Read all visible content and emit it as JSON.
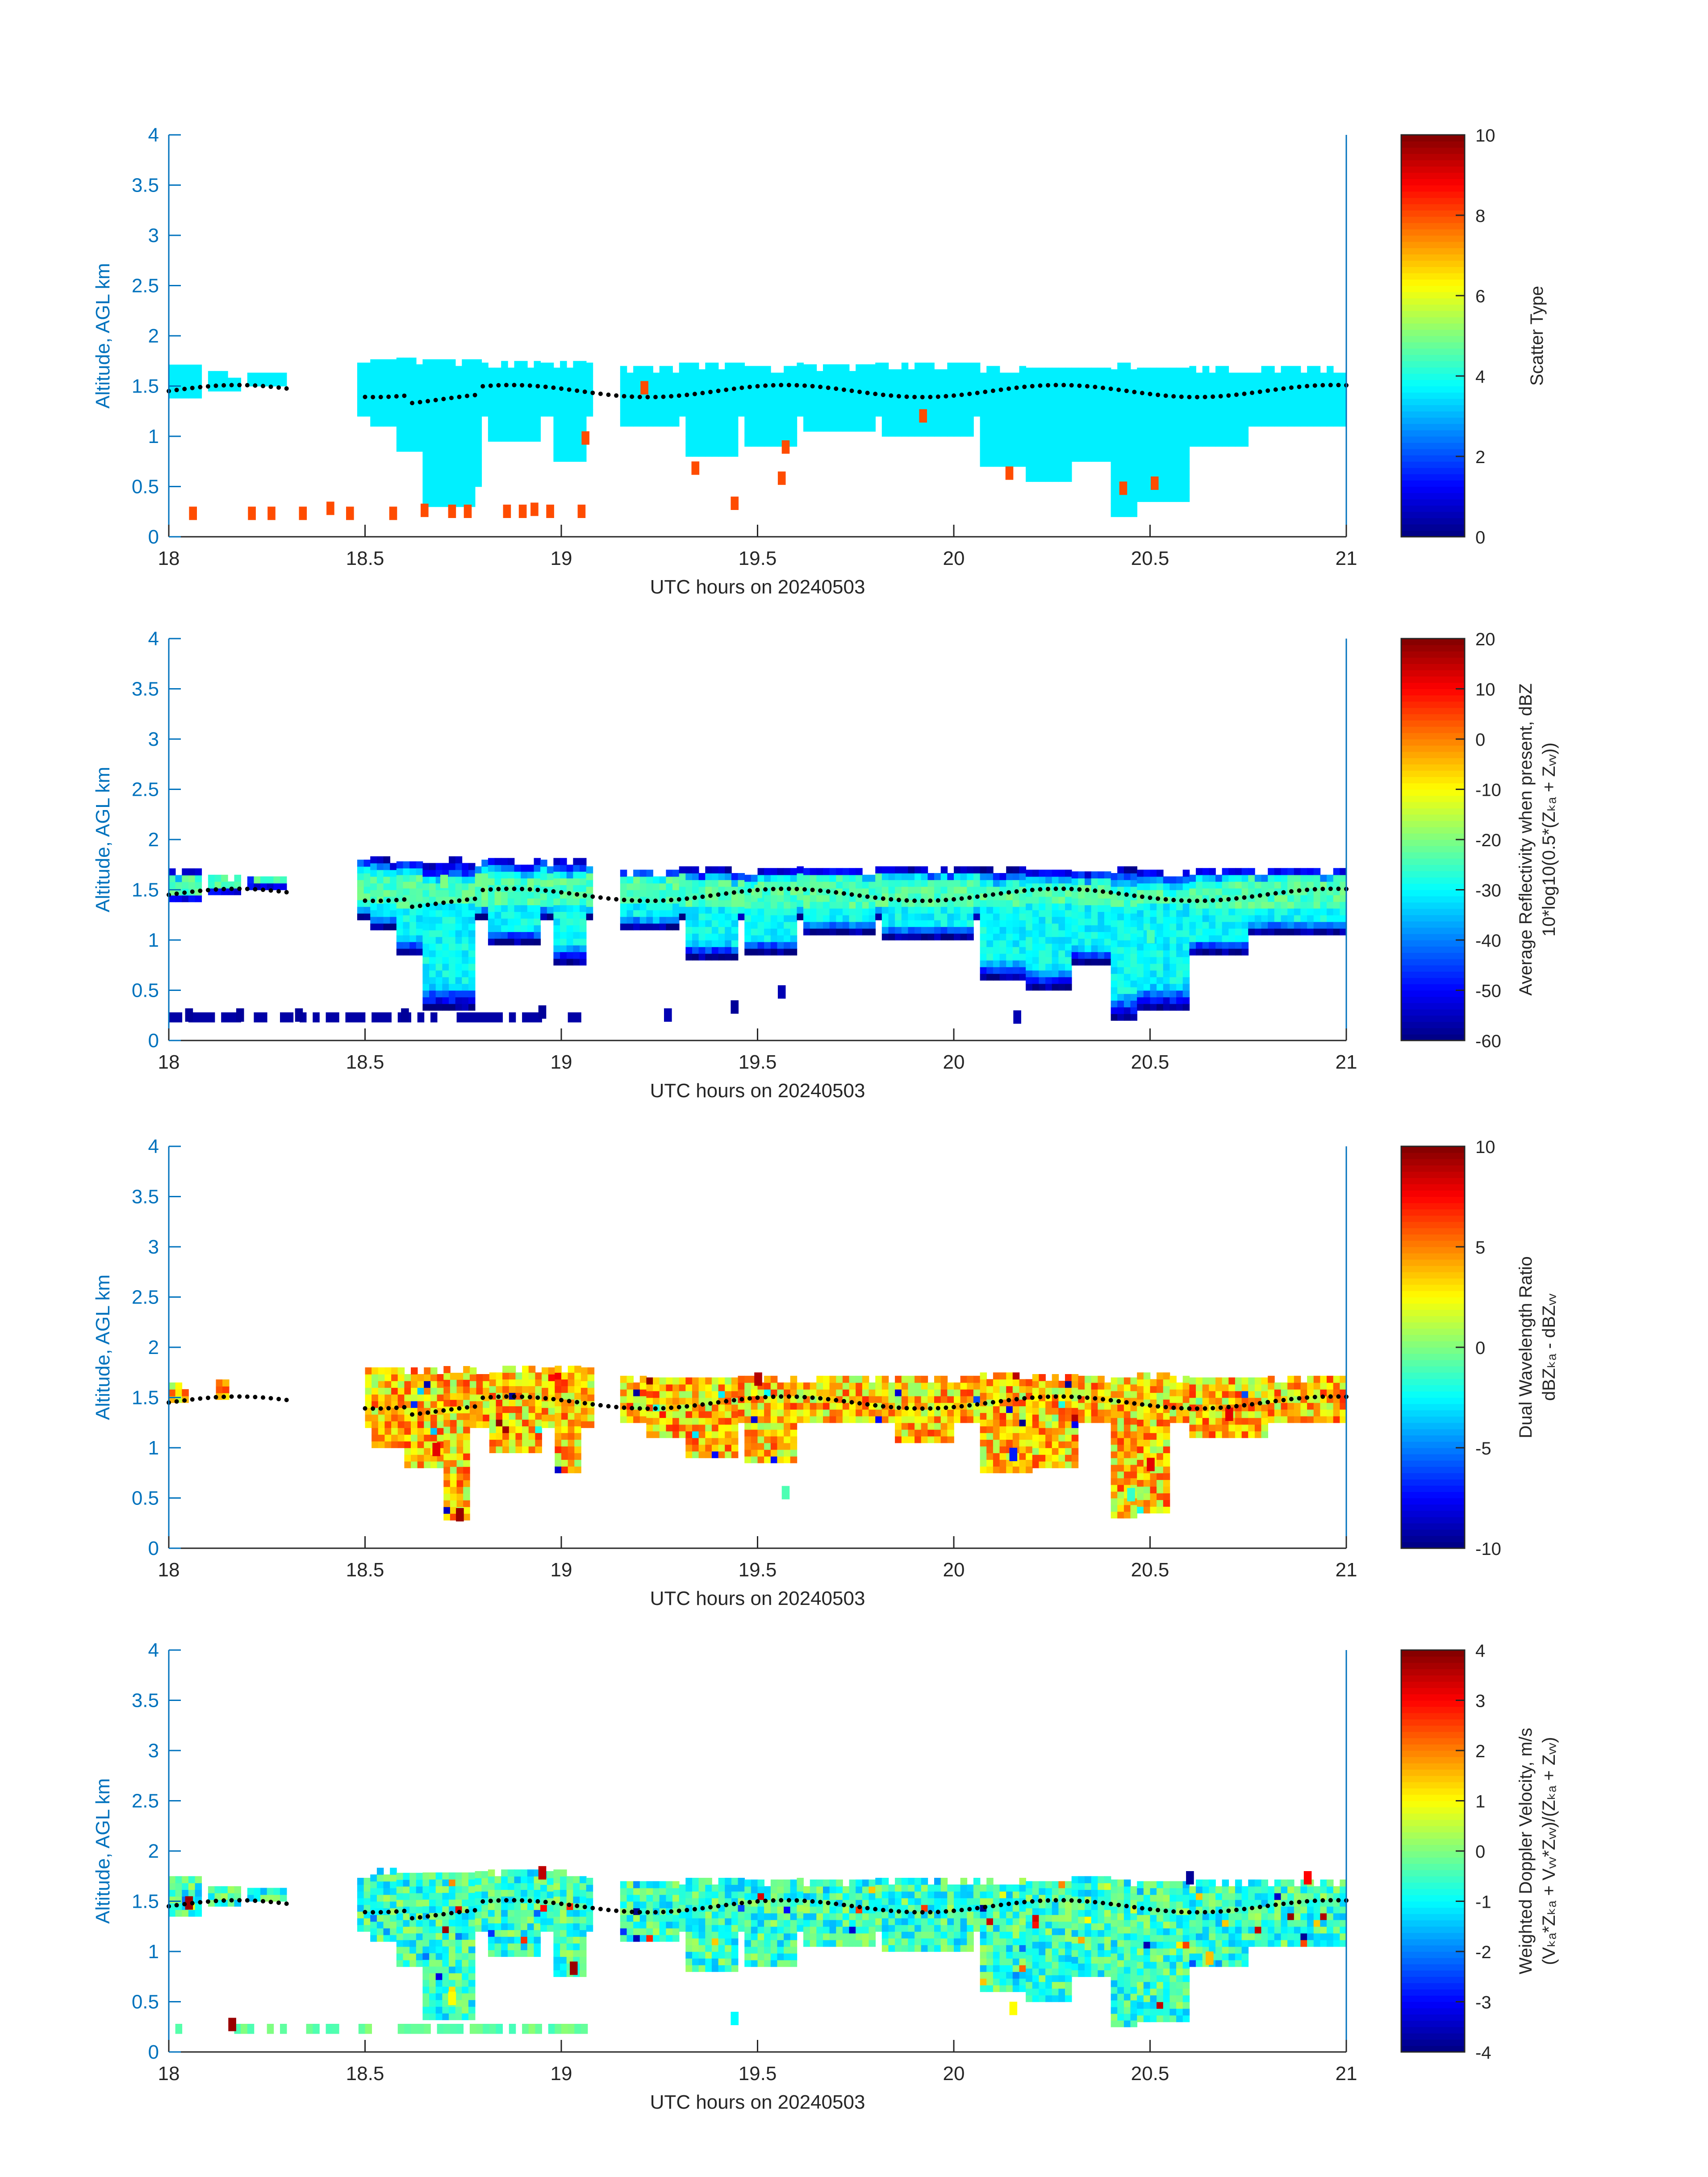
{
  "figure": {
    "background": "#ffffff",
    "axis_color": "#0072BD",
    "tick_label_color": "#262626"
  },
  "chart_data": [
    {
      "type": "heatmap",
      "xlabel": "UTC hours on 20240503",
      "ylabel": "Altitude, AGL km",
      "xlim": [
        18,
        21
      ],
      "ylim": [
        0,
        4
      ],
      "xticks": [
        "18",
        "18.5",
        "19",
        "19.5",
        "20",
        "20.5",
        "21"
      ],
      "yticks": [
        "0",
        "0.5",
        "1",
        "1.5",
        "2",
        "2.5",
        "3",
        "3.5",
        "4"
      ],
      "colorbar": {
        "label": [
          "Scatter Type"
        ],
        "range": [
          0,
          10
        ],
        "ticks": [
          "0",
          "2",
          "4",
          "6",
          "8",
          "10"
        ],
        "colormap": "jet"
      },
      "main_value": 3.6,
      "masses": [
        {
          "x0": 18.0,
          "x1": 18.08,
          "top": 1.65,
          "base": 1.38
        },
        {
          "x0": 18.1,
          "x1": 18.18,
          "top": 1.63,
          "base": 1.45
        },
        {
          "x0": 18.2,
          "x1": 18.3,
          "top": 1.62,
          "base": 1.5
        },
        {
          "x0": 18.48,
          "x1": 19.08,
          "top": 1.72,
          "base": 1.2
        },
        {
          "x0": 19.15,
          "x1": 21.0,
          "top": 1.68,
          "base": 1.2
        }
      ],
      "drapes": [
        {
          "x0": 18.52,
          "x1": 18.62,
          "bottom": 1.1
        },
        {
          "x0": 18.58,
          "x1": 18.7,
          "bottom": 0.85
        },
        {
          "x0": 18.65,
          "x1": 18.78,
          "bottom": 0.3
        },
        {
          "x0": 18.72,
          "x1": 18.8,
          "bottom": 0.5
        },
        {
          "x0": 18.82,
          "x1": 18.95,
          "bottom": 0.95
        },
        {
          "x0": 18.98,
          "x1": 19.06,
          "bottom": 0.75
        },
        {
          "x0": 19.15,
          "x1": 19.3,
          "bottom": 1.1
        },
        {
          "x0": 19.32,
          "x1": 19.45,
          "bottom": 0.8
        },
        {
          "x0": 19.47,
          "x1": 19.6,
          "bottom": 0.9
        },
        {
          "x0": 19.62,
          "x1": 19.8,
          "bottom": 1.05
        },
        {
          "x0": 19.82,
          "x1": 20.05,
          "bottom": 1.0
        },
        {
          "x0": 20.07,
          "x1": 20.18,
          "bottom": 0.7
        },
        {
          "x0": 20.18,
          "x1": 20.3,
          "bottom": 0.55
        },
        {
          "x0": 20.3,
          "x1": 20.4,
          "bottom": 0.75
        },
        {
          "x0": 20.4,
          "x1": 20.47,
          "bottom": 0.2
        },
        {
          "x0": 20.47,
          "x1": 20.6,
          "bottom": 0.35
        },
        {
          "x0": 20.6,
          "x1": 20.75,
          "bottom": 0.9
        },
        {
          "x0": 20.75,
          "x1": 21.0,
          "bottom": 1.1
        }
      ],
      "ground_layer": {
        "x0": 18.0,
        "x1": 19.07,
        "y0": 0.18,
        "y1": 0.28
      },
      "spots": [
        {
          "x": 18.06,
          "y": 0.2,
          "v": 8
        },
        {
          "x": 18.21,
          "y": 0.2,
          "v": 8
        },
        {
          "x": 18.26,
          "y": 0.2,
          "v": 8
        },
        {
          "x": 18.34,
          "y": 0.2,
          "v": 8
        },
        {
          "x": 18.41,
          "y": 0.25,
          "v": 8
        },
        {
          "x": 18.46,
          "y": 0.2,
          "v": 8
        },
        {
          "x": 18.57,
          "y": 0.2,
          "v": 8
        },
        {
          "x": 18.65,
          "y": 0.23,
          "v": 8
        },
        {
          "x": 18.72,
          "y": 0.22,
          "v": 8
        },
        {
          "x": 18.76,
          "y": 0.22,
          "v": 8
        },
        {
          "x": 18.86,
          "y": 0.22,
          "v": 8
        },
        {
          "x": 18.9,
          "y": 0.22,
          "v": 8
        },
        {
          "x": 18.93,
          "y": 0.24,
          "v": 8
        },
        {
          "x": 18.97,
          "y": 0.22,
          "v": 8
        },
        {
          "x": 19.05,
          "y": 0.22,
          "v": 8
        },
        {
          "x": 19.06,
          "y": 0.95,
          "v": 8
        },
        {
          "x": 19.21,
          "y": 1.45,
          "v": 8
        },
        {
          "x": 19.34,
          "y": 0.65,
          "v": 8
        },
        {
          "x": 19.44,
          "y": 0.3,
          "v": 8
        },
        {
          "x": 19.56,
          "y": 0.55,
          "v": 8
        },
        {
          "x": 19.57,
          "y": 0.86,
          "v": 8
        },
        {
          "x": 19.92,
          "y": 1.17,
          "v": 8
        },
        {
          "x": 20.14,
          "y": 0.6,
          "v": 8
        },
        {
          "x": 20.43,
          "y": 0.45,
          "v": 8
        },
        {
          "x": 20.51,
          "y": 0.5,
          "v": 8
        }
      ]
    },
    {
      "type": "heatmap",
      "xlabel": "UTC hours on 20240503",
      "ylabel": "Altitude, AGL km",
      "xlim": [
        18,
        21
      ],
      "ylim": [
        0,
        4
      ],
      "xticks": [
        "18",
        "18.5",
        "19",
        "19.5",
        "20",
        "20.5",
        "21"
      ],
      "yticks": [
        "0",
        "0.5",
        "1",
        "1.5",
        "2",
        "2.5",
        "3",
        "3.5",
        "4"
      ],
      "colorbar": {
        "label": [
          "Average Reflectivity when present, dBZ",
          "10*log10(0.5*(Zₖₐ + Zᵥᵥ))"
        ],
        "range": [
          -60,
          20
        ],
        "ticks": [
          "-60",
          "-50",
          "-40",
          "-30",
          "-20",
          "-10",
          "0",
          "10",
          "20"
        ],
        "colormap": "jet"
      },
      "main_value": -32,
      "masses": [
        {
          "x0": 18.0,
          "x1": 18.08,
          "top": 1.65,
          "base": 1.38
        },
        {
          "x0": 18.1,
          "x1": 18.18,
          "top": 1.63,
          "base": 1.45
        },
        {
          "x0": 18.2,
          "x1": 18.3,
          "top": 1.62,
          "base": 1.5
        },
        {
          "x0": 18.48,
          "x1": 19.08,
          "top": 1.78,
          "base": 1.2
        },
        {
          "x0": 19.15,
          "x1": 21.0,
          "top": 1.68,
          "base": 1.2
        }
      ],
      "drapes": [
        {
          "x0": 18.52,
          "x1": 18.62,
          "bottom": 1.1
        },
        {
          "x0": 18.58,
          "x1": 18.7,
          "bottom": 0.85
        },
        {
          "x0": 18.65,
          "x1": 18.78,
          "bottom": 0.3
        },
        {
          "x0": 18.82,
          "x1": 18.95,
          "bottom": 0.95
        },
        {
          "x0": 18.98,
          "x1": 19.06,
          "bottom": 0.75
        },
        {
          "x0": 19.15,
          "x1": 19.3,
          "bottom": 1.1
        },
        {
          "x0": 19.32,
          "x1": 19.45,
          "bottom": 0.8
        },
        {
          "x0": 19.47,
          "x1": 19.6,
          "bottom": 0.85
        },
        {
          "x0": 19.62,
          "x1": 19.8,
          "bottom": 1.05
        },
        {
          "x0": 19.82,
          "x1": 20.05,
          "bottom": 1.0
        },
        {
          "x0": 20.07,
          "x1": 20.18,
          "bottom": 0.6
        },
        {
          "x0": 20.18,
          "x1": 20.3,
          "bottom": 0.5
        },
        {
          "x0": 20.3,
          "x1": 20.4,
          "bottom": 0.75
        },
        {
          "x0": 20.4,
          "x1": 20.47,
          "bottom": 0.2
        },
        {
          "x0": 20.47,
          "x1": 20.6,
          "bottom": 0.3
        },
        {
          "x0": 20.6,
          "x1": 20.75,
          "bottom": 0.85
        },
        {
          "x0": 20.75,
          "x1": 21.0,
          "bottom": 1.05
        }
      ],
      "ground_layer": {
        "x0": 18.0,
        "x1": 19.07,
        "y0": 0.18,
        "y1": 0.28
      },
      "spots": [
        {
          "x": 18.05,
          "y": 0.22,
          "v": -58
        },
        {
          "x": 18.18,
          "y": 0.22,
          "v": -58
        },
        {
          "x": 18.33,
          "y": 0.22,
          "v": -58
        },
        {
          "x": 18.6,
          "y": 0.22,
          "v": -58
        },
        {
          "x": 18.95,
          "y": 0.25,
          "v": -58
        },
        {
          "x": 19.27,
          "y": 0.22,
          "v": -56
        },
        {
          "x": 19.44,
          "y": 0.3,
          "v": -58
        },
        {
          "x": 19.56,
          "y": 0.45,
          "v": -56
        },
        {
          "x": 20.16,
          "y": 0.2,
          "v": -56
        },
        {
          "x": 18.7,
          "y": 1.55,
          "v": -20
        },
        {
          "x": 19.5,
          "y": 1.45,
          "v": -22
        },
        {
          "x": 20.5,
          "y": 1.0,
          "v": -24
        }
      ]
    },
    {
      "type": "heatmap",
      "xlabel": "UTC hours on 20240503",
      "ylabel": "Altitude, AGL km",
      "xlim": [
        18,
        21
      ],
      "ylim": [
        0,
        4
      ],
      "xticks": [
        "18",
        "18.5",
        "19",
        "19.5",
        "20",
        "20.5",
        "21"
      ],
      "yticks": [
        "0",
        "0.5",
        "1",
        "1.5",
        "2",
        "2.5",
        "3",
        "3.5",
        "4"
      ],
      "colorbar": {
        "label": [
          "Dual Wavelength Ratio",
          "dBZₖₐ - dBZᵥᵥ"
        ],
        "range": [
          -10,
          10
        ],
        "ticks": [
          "-10",
          "-5",
          "0",
          "5",
          "10"
        ],
        "colormap": "jet"
      },
      "main_value": 3.5,
      "masses": [
        {
          "x0": 18.0,
          "x1": 18.05,
          "top": 1.6,
          "base": 1.45
        },
        {
          "x0": 18.12,
          "x1": 18.15,
          "top": 1.65,
          "base": 1.48
        },
        {
          "x0": 18.5,
          "x1": 19.08,
          "top": 1.78,
          "base": 1.2
        },
        {
          "x0": 19.15,
          "x1": 21.0,
          "top": 1.7,
          "base": 1.25
        }
      ],
      "drapes": [
        {
          "x0": 18.52,
          "x1": 18.62,
          "bottom": 1.0
        },
        {
          "x0": 18.6,
          "x1": 18.7,
          "bottom": 0.8
        },
        {
          "x0": 18.7,
          "x1": 18.76,
          "bottom": 0.28
        },
        {
          "x0": 18.82,
          "x1": 18.95,
          "bottom": 0.95
        },
        {
          "x0": 18.98,
          "x1": 19.05,
          "bottom": 0.75
        },
        {
          "x0": 19.22,
          "x1": 19.32,
          "bottom": 1.1
        },
        {
          "x0": 19.32,
          "x1": 19.45,
          "bottom": 0.9
        },
        {
          "x0": 19.47,
          "x1": 19.6,
          "bottom": 0.85
        },
        {
          "x0": 19.85,
          "x1": 20.0,
          "bottom": 1.05
        },
        {
          "x0": 20.07,
          "x1": 20.2,
          "bottom": 0.75
        },
        {
          "x0": 20.2,
          "x1": 20.32,
          "bottom": 0.8
        },
        {
          "x0": 20.4,
          "x1": 20.47,
          "bottom": 0.3
        },
        {
          "x0": 20.47,
          "x1": 20.55,
          "bottom": 0.35
        },
        {
          "x0": 20.6,
          "x1": 20.8,
          "bottom": 1.1
        }
      ],
      "spots": [
        {
          "x": 18.74,
          "y": 0.3,
          "v": 9.5
        },
        {
          "x": 19.57,
          "y": 0.52,
          "v": -1
        },
        {
          "x": 18.68,
          "y": 0.95,
          "v": 8
        },
        {
          "x": 20.5,
          "y": 0.8,
          "v": 8
        },
        {
          "x": 20.45,
          "y": 0.5,
          "v": -1.5
        },
        {
          "x": 20.7,
          "y": 1.3,
          "v": 8
        },
        {
          "x": 19.5,
          "y": 1.65,
          "v": 9
        },
        {
          "x": 20.15,
          "y": 0.9,
          "v": -7
        }
      ]
    },
    {
      "type": "heatmap",
      "xlabel": "UTC hours on 20240503",
      "ylabel": "Altitude, AGL km",
      "xlim": [
        18,
        21
      ],
      "ylim": [
        0,
        4
      ],
      "xticks": [
        "18",
        "18.5",
        "19",
        "19.5",
        "20",
        "20.5",
        "21"
      ],
      "yticks": [
        "0",
        "0.5",
        "1",
        "1.5",
        "2",
        "2.5",
        "3",
        "3.5",
        "4"
      ],
      "colorbar": {
        "label": [
          "Weighted Doppler Velocity, m/s",
          "(Vₖₐ*Zₖₐ + Vᵥᵥ*Zᵥᵥ)/(Zₖₐ + Zᵥᵥ)"
        ],
        "range": [
          -4,
          4
        ],
        "ticks": [
          "-4",
          "-3",
          "-2",
          "-1",
          "0",
          "1",
          "2",
          "3",
          "4"
        ],
        "colormap": "jet"
      },
      "main_value": -0.6,
      "masses": [
        {
          "x0": 18.0,
          "x1": 18.08,
          "top": 1.7,
          "base": 1.35
        },
        {
          "x0": 18.1,
          "x1": 18.18,
          "top": 1.65,
          "base": 1.45
        },
        {
          "x0": 18.2,
          "x1": 18.3,
          "top": 1.62,
          "base": 1.5
        },
        {
          "x0": 18.48,
          "x1": 19.08,
          "top": 1.78,
          "base": 1.2
        },
        {
          "x0": 19.15,
          "x1": 21.0,
          "top": 1.7,
          "base": 1.2
        }
      ],
      "drapes": [
        {
          "x0": 18.52,
          "x1": 18.62,
          "bottom": 1.1
        },
        {
          "x0": 18.58,
          "x1": 18.7,
          "bottom": 0.85
        },
        {
          "x0": 18.65,
          "x1": 18.78,
          "bottom": 0.32
        },
        {
          "x0": 18.82,
          "x1": 18.95,
          "bottom": 0.95
        },
        {
          "x0": 18.98,
          "x1": 19.06,
          "bottom": 0.75
        },
        {
          "x0": 19.15,
          "x1": 19.3,
          "bottom": 1.1
        },
        {
          "x0": 19.32,
          "x1": 19.45,
          "bottom": 0.8
        },
        {
          "x0": 19.47,
          "x1": 19.6,
          "bottom": 0.85
        },
        {
          "x0": 19.62,
          "x1": 19.8,
          "bottom": 1.05
        },
        {
          "x0": 19.82,
          "x1": 20.05,
          "bottom": 1.0
        },
        {
          "x0": 20.07,
          "x1": 20.18,
          "bottom": 0.6
        },
        {
          "x0": 20.18,
          "x1": 20.3,
          "bottom": 0.5
        },
        {
          "x0": 20.3,
          "x1": 20.4,
          "bottom": 0.75
        },
        {
          "x0": 20.4,
          "x1": 20.47,
          "bottom": 0.25
        },
        {
          "x0": 20.47,
          "x1": 20.6,
          "bottom": 0.3
        },
        {
          "x0": 20.6,
          "x1": 20.75,
          "bottom": 0.85
        },
        {
          "x0": 20.75,
          "x1": 21.0,
          "bottom": 1.05
        }
      ],
      "ground_layer": {
        "x0": 18.0,
        "x1": 19.07,
        "y0": 0.18,
        "y1": 0.28
      },
      "spots": [
        {
          "x": 18.16,
          "y": 0.24,
          "v": 3.8
        },
        {
          "x": 18.05,
          "y": 1.45,
          "v": 3.8
        },
        {
          "x": 19.03,
          "y": 0.8,
          "v": 3.8
        },
        {
          "x": 18.72,
          "y": 0.5,
          "v": 1
        },
        {
          "x": 19.44,
          "y": 0.3,
          "v": -1
        },
        {
          "x": 20.15,
          "y": 0.4,
          "v": 1
        },
        {
          "x": 20.9,
          "y": 1.7,
          "v": 3
        },
        {
          "x": 20.6,
          "y": 1.7,
          "v": -3.8
        },
        {
          "x": 18.95,
          "y": 1.75,
          "v": 3.5
        },
        {
          "x": 20.65,
          "y": 0.9,
          "v": 1.5
        }
      ]
    }
  ]
}
